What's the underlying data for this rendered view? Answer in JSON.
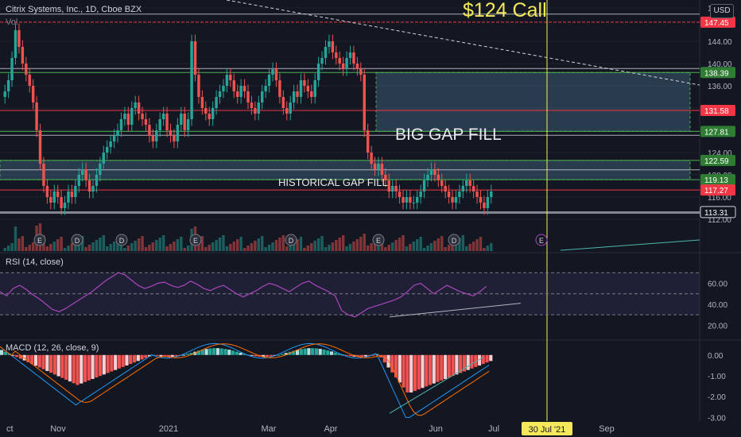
{
  "header": {
    "symbol_line": "Citrix Systems, Inc., 1D, Cboe BZX",
    "vol_label": "Vol"
  },
  "currency_button": "USD",
  "annotations": {
    "call_note": "$124 Call",
    "big_gap": "BIG GAP FILL",
    "hist_gap": "HISTORICAL GAP FILL"
  },
  "colors": {
    "background": "#131722",
    "up": "#26a69a",
    "down": "#ef5350",
    "rsi": "#ab47bc",
    "macd": "#2196f3",
    "signal": "#ff6d00",
    "red_level": "#f23645",
    "call_line": "#f5e95b"
  },
  "chart_data": [
    {
      "type": "candlestick",
      "title": "Citrix Systems, Inc., 1D, Cboe BZX",
      "price_axis": {
        "range": [
          110,
          150
        ],
        "ticks": [
          "150.00",
          "144.00",
          "140.00",
          "136.00",
          "132.00",
          "128.00",
          "124.00",
          "120.00",
          "116.00",
          "112.00"
        ]
      },
      "time_axis": {
        "labels": [
          "ct",
          "Nov",
          "2021",
          "Mar",
          "Apr",
          "Jun",
          "Jul",
          "Sep"
        ],
        "cursor_date": "30 Jul '21"
      },
      "horizontal_levels": [
        {
          "price": 147.45,
          "label": "147.45",
          "color": "red"
        },
        {
          "price": 138.39,
          "label": "138.39",
          "color": "green"
        },
        {
          "price": 131.58,
          "label": "131.58",
          "color": "red"
        },
        {
          "price": 127.81,
          "label": "127.81",
          "color": "green"
        },
        {
          "price": 122.59,
          "label": "122.59",
          "color": "green"
        },
        {
          "price": 119.13,
          "label": "119.13",
          "color": "green"
        },
        {
          "price": 117.27,
          "label": "117.27",
          "color": "red"
        },
        {
          "price": 113.31,
          "label": "113.31",
          "color": "white"
        }
      ],
      "gap_zones": [
        {
          "name": "BIG GAP FILL",
          "from": 127.81,
          "to": 138.39
        },
        {
          "name": "HISTORICAL GAP FILL",
          "from": 119.13,
          "to": 122.59
        }
      ],
      "approx_daily_closes": [
        135,
        137,
        141,
        146,
        143,
        140,
        138,
        136,
        133,
        128,
        122,
        118,
        116,
        115,
        117,
        116,
        114,
        115,
        117,
        116,
        118,
        120,
        121,
        119,
        117,
        118,
        120,
        122,
        124,
        125,
        126,
        127,
        128,
        130,
        131,
        129,
        132,
        133,
        131,
        130,
        129,
        127,
        126,
        128,
        130,
        131,
        128,
        127,
        126,
        129,
        131,
        128,
        130,
        144,
        138,
        134,
        132,
        131,
        130,
        132,
        134,
        135,
        136,
        138,
        137,
        135,
        134,
        136,
        135,
        133,
        132,
        131,
        133,
        135,
        136,
        138,
        139,
        137,
        134,
        132,
        131,
        133,
        135,
        134,
        137,
        136,
        135,
        134,
        137,
        140,
        141,
        143,
        144,
        142,
        141,
        140,
        139,
        141,
        142,
        140,
        139,
        138,
        128,
        124,
        122,
        121,
        122,
        120,
        119,
        117,
        118,
        117,
        116,
        115,
        116,
        115,
        115,
        116,
        117,
        119,
        120,
        121,
        120,
        119,
        118,
        117,
        116,
        115,
        116,
        117,
        118,
        119,
        118,
        117,
        116,
        115,
        114,
        116,
        117
      ]
    },
    {
      "type": "line",
      "title": "RSI (14, close)",
      "y_ticks": [
        "60.00",
        "40.00",
        "20.00"
      ],
      "band": [
        30,
        70
      ],
      "approx_values": [
        52,
        48,
        55,
        58,
        54,
        49,
        45,
        40,
        35,
        33,
        36,
        40,
        44,
        48,
        52,
        57,
        62,
        66,
        70,
        68,
        63,
        58,
        55,
        57,
        60,
        61,
        58,
        56,
        58,
        62,
        59,
        55,
        53,
        56,
        58,
        54,
        50,
        47,
        50,
        53,
        57,
        60,
        58,
        55,
        52,
        56,
        60,
        62,
        58,
        55,
        52,
        48,
        34,
        30,
        28,
        32,
        36,
        38,
        40,
        42,
        44,
        47,
        52,
        58,
        60,
        55,
        50,
        54,
        58,
        55,
        52,
        50,
        48,
        52,
        57
      ]
    },
    {
      "type": "histogram+line",
      "title": "MACD (12, 26, close, 9)",
      "y_ticks": [
        "0.00",
        "-1.00",
        "-2.00",
        "-3.00"
      ]
    }
  ]
}
